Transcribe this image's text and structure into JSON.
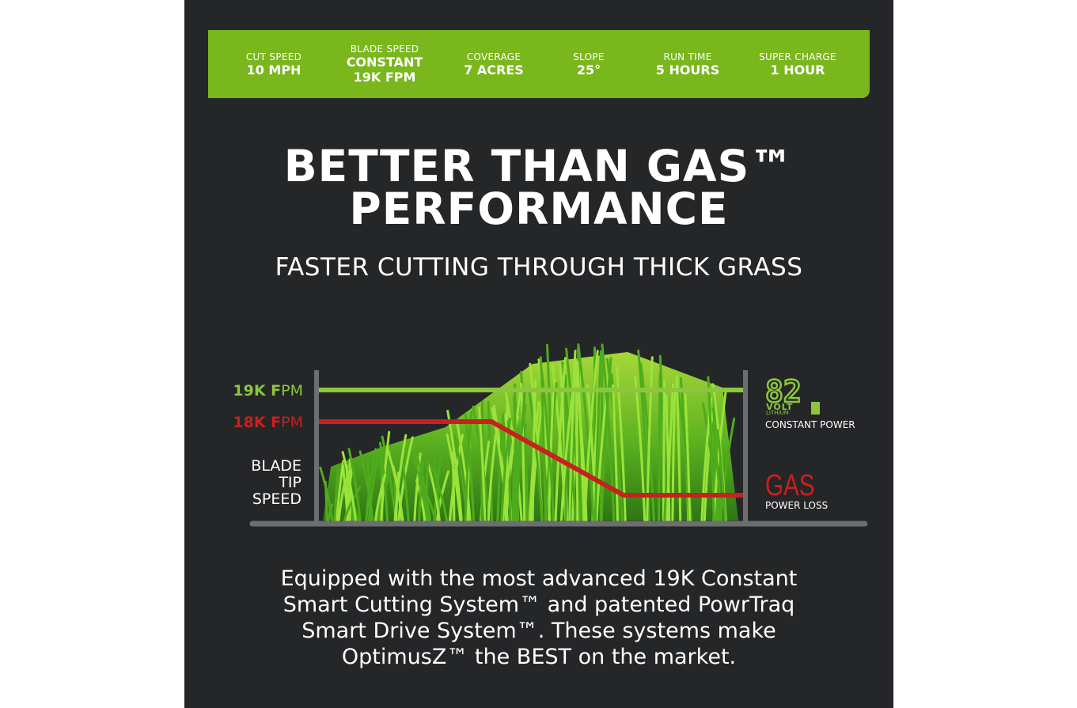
{
  "specs": [
    {
      "label": "CUT SPEED",
      "value": "10 MPH",
      "value2": ""
    },
    {
      "label": "BLADE SPEED",
      "value": "CONSTANT",
      "value2": "19K FPM"
    },
    {
      "label": "COVERAGE",
      "value": "7 ACRES",
      "value2": ""
    },
    {
      "label": "SLOPE",
      "value": "25°",
      "value2": ""
    },
    {
      "label": "RUN TIME",
      "value": "5 HOURS",
      "value2": ""
    },
    {
      "label": "SUPER CHARGE",
      "value": "1 HOUR",
      "value2": ""
    }
  ],
  "headline": {
    "line1": "BETTER THAN GAS™",
    "line2": "PERFORMANCE"
  },
  "subhead": "FASTER CUTTING THROUGH THICK GRASS",
  "graphic": {
    "label_19k_bold": "19K F",
    "label_19k_rest": "PM",
    "label_18k_bold": "18K F",
    "label_18k_rest": "PM",
    "axis_label": [
      "BLADE",
      "TIP",
      "SPEED"
    ],
    "battery_number": "82",
    "battery_volt": "VOLT",
    "battery_lithium": "LITHIUM",
    "constant_power": "CONSTANT POWER",
    "gas_label": "GAS",
    "power_loss": "POWER LOSS"
  },
  "body": [
    "Equipped with the most advanced 19K Constant",
    "Smart Cutting System™ and patented PowrTraq",
    "Smart Drive System™. These systems make",
    "OptimusZ™ the BEST on the market."
  ],
  "colors": {
    "background": "#252628",
    "accent_green": "#7ab71d",
    "line_green": "#8cc63f",
    "line_red": "#c8201f",
    "axis_gray": "#6d6e70"
  }
}
